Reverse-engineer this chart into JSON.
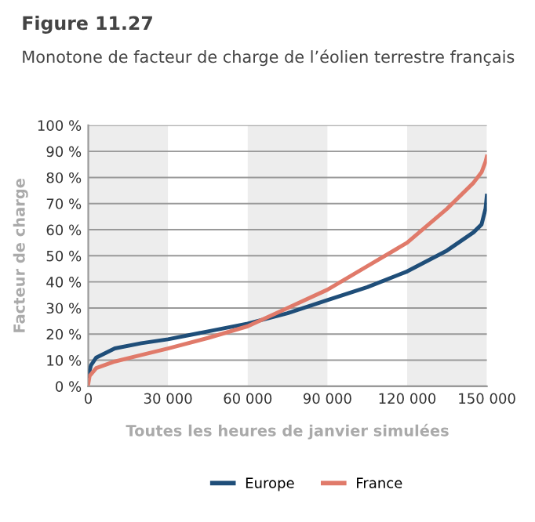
{
  "chart_data": {
    "type": "line",
    "title": "Figure 11.27",
    "subtitle": "Monotone de facteur de charge de l’éolien terrestre français",
    "xlabel": "Toutes les heures de janvier simulées",
    "ylabel": "Facteur de charge",
    "xlim": [
      0,
      150000
    ],
    "ylim": [
      0,
      100
    ],
    "xticks": [
      0,
      {
        "value": 30000,
        "label": "30 000"
      },
      {
        "value": 60000,
        "label": "60 000"
      },
      {
        "value": 90000,
        "label": "90 000"
      },
      {
        "value": 120000,
        "label": "120 000"
      },
      {
        "value": 150000,
        "label": "150 000"
      }
    ],
    "yticks": [
      {
        "value": 0,
        "label": "0 %"
      },
      {
        "value": 10,
        "label": "10 %"
      },
      {
        "value": 20,
        "label": "20 %"
      },
      {
        "value": 30,
        "label": "30 %"
      },
      {
        "value": 40,
        "label": "40 %"
      },
      {
        "value": 50,
        "label": "50 %"
      },
      {
        "value": 60,
        "label": "60 %"
      },
      {
        "value": 70,
        "label": "70 %"
      },
      {
        "value": 80,
        "label": "80 %"
      },
      {
        "value": 90,
        "label": "90 %"
      },
      {
        "value": 100,
        "label": "100 %"
      }
    ],
    "grid": "y",
    "legend": "bottom",
    "marker": "none",
    "line_style": "solid",
    "bands": [
      {
        "axis": "x",
        "from": 0,
        "to": 30000,
        "color": "#ededed"
      },
      {
        "axis": "x",
        "from": 60000,
        "to": 90000,
        "color": "#ededed"
      },
      {
        "axis": "x",
        "from": 120000,
        "to": 150000,
        "color": "#ededed"
      }
    ],
    "series": [
      {
        "name": "Europe",
        "color": "#1f4e79",
        "x": [
          0,
          1000,
          3000,
          10000,
          20000,
          30000,
          45000,
          60000,
          75000,
          90000,
          105000,
          120000,
          135000,
          145000,
          148000,
          149500,
          150000
        ],
        "values": [
          4,
          8,
          11,
          14.5,
          16.5,
          18,
          21,
          24,
          28,
          33,
          38,
          44,
          52,
          59,
          62,
          68,
          73
        ]
      },
      {
        "name": "France",
        "color": "#e07a6a",
        "x": [
          0,
          500,
          3000,
          10000,
          20000,
          30000,
          45000,
          60000,
          75000,
          90000,
          105000,
          120000,
          135000,
          145000,
          148000,
          149500,
          150000
        ],
        "values": [
          1,
          4,
          7,
          9.5,
          12,
          14.5,
          18.5,
          23,
          30,
          37,
          46,
          55,
          68,
          78,
          82,
          86,
          88
        ]
      }
    ]
  }
}
